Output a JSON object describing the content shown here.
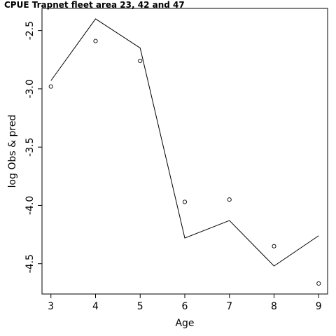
{
  "chart_data": {
    "type": "line",
    "title": "CPUE Trapnet fleet area 23, 42 and 47",
    "xlabel": "Age",
    "ylabel": "log Obs & pred",
    "xlim": [
      2.8,
      9.2
    ],
    "ylim": [
      -4.76,
      -2.31
    ],
    "x_ticks": [
      3,
      4,
      5,
      6,
      7,
      8,
      9
    ],
    "y_ticks": [
      -2.5,
      -3.0,
      -3.5,
      -4.0,
      -4.5
    ],
    "x_tick_labels": [
      "3",
      "4",
      "5",
      "6",
      "7",
      "8",
      "9"
    ],
    "y_tick_labels": [
      "-2.5",
      "-3.0",
      "-3.5",
      "-4.0",
      "-4.5"
    ],
    "grid": false,
    "series": [
      {
        "kind": "line",
        "x": [
          3,
          4,
          5,
          6,
          7,
          8,
          9
        ],
        "y": [
          -2.93,
          -2.4,
          -2.65,
          -4.28,
          -4.13,
          -4.52,
          -4.26
        ],
        "color": "#000000"
      },
      {
        "kind": "points",
        "marker": "open-circle",
        "x": [
          3,
          4,
          5,
          6,
          7,
          8,
          9
        ],
        "y": [
          -2.98,
          -2.59,
          -2.76,
          -3.97,
          -3.95,
          -4.35,
          -4.67
        ],
        "color": "#000000"
      }
    ]
  }
}
